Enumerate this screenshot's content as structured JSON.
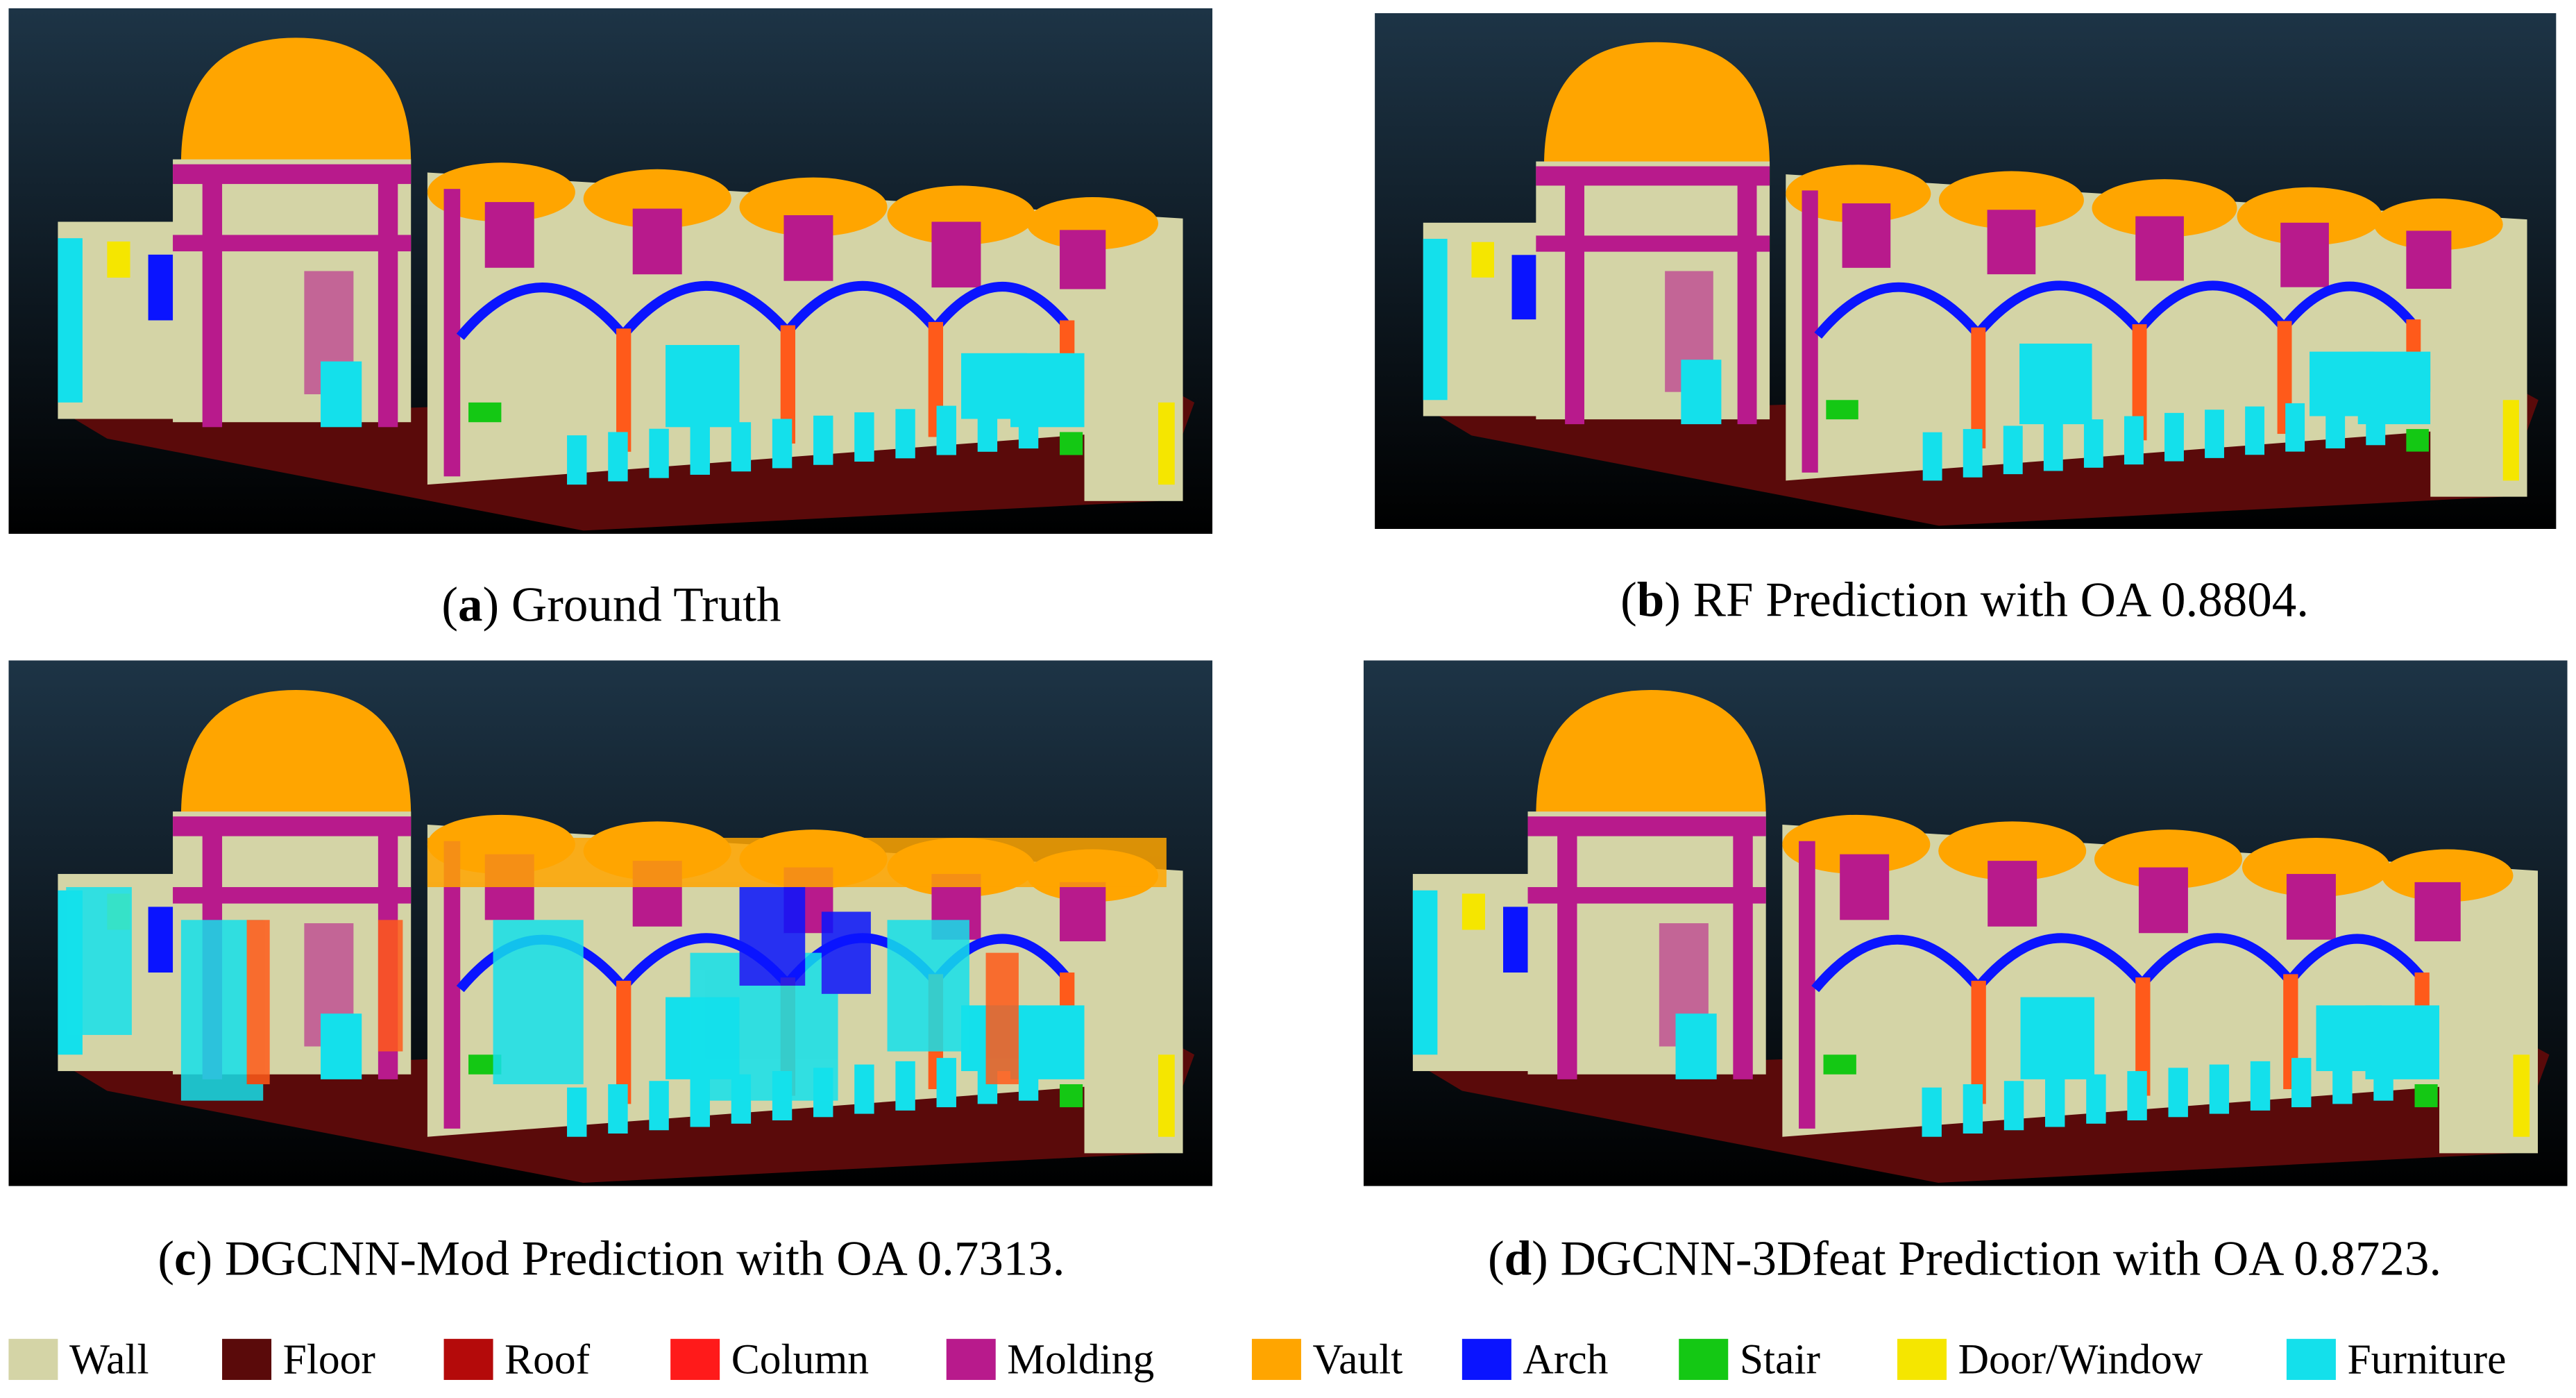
{
  "panels": [
    {
      "caption": [
        "(",
        "a",
        ") Ground Truth"
      ]
    },
    {
      "caption": [
        "(",
        "b",
        ") RF Prediction with OA 0.8804."
      ]
    },
    {
      "caption": [
        "(",
        "c",
        ") DGCNN-Mod Prediction with OA 0.7313."
      ]
    },
    {
      "caption": [
        "(",
        "d",
        ") DGCNN-3Dfeat Prediction with OA 0.8723."
      ]
    }
  ],
  "legend": [
    {
      "label": "Wall",
      "color": "#d4d4a6"
    },
    {
      "label": "Floor",
      "color": "#5a0a0a"
    },
    {
      "label": "Roof",
      "color": "#b40a0a"
    },
    {
      "label": "Column",
      "color": "#ff1a1a"
    },
    {
      "label": "Molding",
      "color": "#b81a8c"
    },
    {
      "label": "Vault",
      "color": "#ffa500"
    },
    {
      "label": "Arch",
      "color": "#0a14ff"
    },
    {
      "label": "Stair",
      "color": "#14c814"
    },
    {
      "label": "Door/Window",
      "color": "#f5e600"
    },
    {
      "label": "Furniture",
      "color": "#14e0eb"
    }
  ]
}
